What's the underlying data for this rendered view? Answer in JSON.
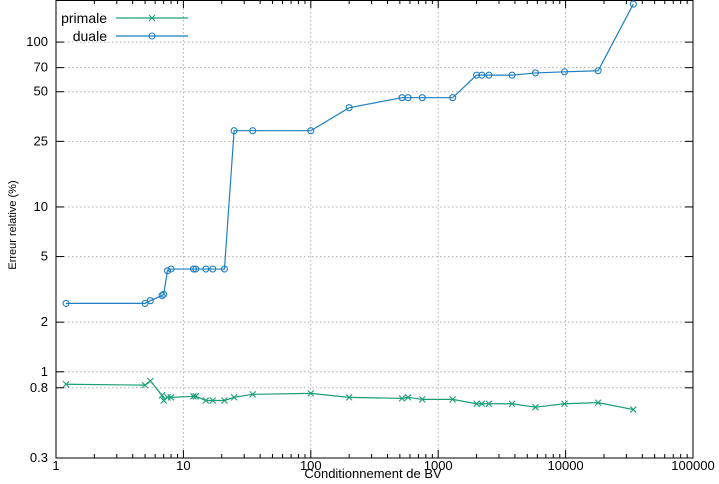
{
  "chart_data": {
    "type": "line",
    "title": "",
    "xlabel": "Conditionnement de BV",
    "ylabel": "Erreur relative (%)",
    "xscale": "log",
    "yscale": "log",
    "xlim": [
      1,
      100000
    ],
    "ylim": [
      0.3,
      180
    ],
    "grid": true,
    "legend_position": "top-left",
    "xticks": [
      {
        "value": 1,
        "label": "1"
      },
      {
        "value": 10,
        "label": "10"
      },
      {
        "value": 100,
        "label": "100"
      },
      {
        "value": 1000,
        "label": "1000"
      },
      {
        "value": 10000,
        "label": "10000"
      },
      {
        "value": 100000,
        "label": "100000"
      }
    ],
    "yticks": [
      {
        "value": 0.3,
        "label": "0.3"
      },
      {
        "value": 0.8,
        "label": "0.8"
      },
      {
        "value": 1,
        "label": "1"
      },
      {
        "value": 2,
        "label": "2"
      },
      {
        "value": 5,
        "label": "5"
      },
      {
        "value": 10,
        "label": "10"
      },
      {
        "value": 25,
        "label": "25"
      },
      {
        "value": 50,
        "label": "50"
      },
      {
        "value": 70,
        "label": "70"
      },
      {
        "value": 100,
        "label": "100"
      }
    ],
    "series": [
      {
        "name": "primale",
        "color": "#1a9e77",
        "marker": "x",
        "x": [
          1.2,
          5,
          5.5,
          6.8,
          7,
          7.5,
          8,
          12,
          12.5,
          15,
          17,
          21,
          25,
          35,
          100,
          200,
          520,
          580,
          750,
          1300,
          2000,
          2200,
          2500,
          3800,
          5800,
          9800,
          18000,
          34000
        ],
        "y": [
          0.84,
          0.83,
          0.88,
          0.72,
          0.67,
          0.7,
          0.7,
          0.71,
          0.71,
          0.67,
          0.67,
          0.67,
          0.7,
          0.73,
          0.74,
          0.7,
          0.69,
          0.7,
          0.68,
          0.68,
          0.64,
          0.64,
          0.64,
          0.64,
          0.61,
          0.64,
          0.65,
          0.59
        ]
      },
      {
        "name": "duale",
        "color": "#1f7fbf",
        "marker": "o",
        "x": [
          1.2,
          5,
          5.5,
          6.8,
          7,
          7.5,
          8,
          12,
          12.5,
          15,
          17,
          21,
          25,
          35,
          100,
          200,
          520,
          580,
          750,
          1300,
          2000,
          2200,
          2500,
          3800,
          5800,
          9800,
          18000,
          34000
        ],
        "y": [
          2.6,
          2.6,
          2.7,
          2.9,
          2.95,
          4.1,
          4.2,
          4.2,
          4.2,
          4.2,
          4.2,
          4.2,
          29,
          29,
          29,
          40,
          46,
          46,
          46,
          46,
          63,
          63,
          63,
          63,
          65,
          66,
          67,
          170
        ]
      }
    ]
  }
}
